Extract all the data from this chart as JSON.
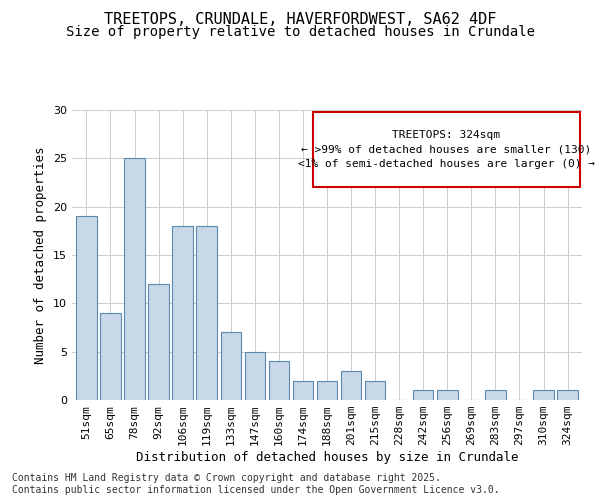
{
  "title_line1": "TREETOPS, CRUNDALE, HAVERFORDWEST, SA62 4DF",
  "title_line2": "Size of property relative to detached houses in Crundale",
  "xlabel": "Distribution of detached houses by size in Crundale",
  "ylabel": "Number of detached properties",
  "categories": [
    "51sqm",
    "65sqm",
    "78sqm",
    "92sqm",
    "106sqm",
    "119sqm",
    "133sqm",
    "147sqm",
    "160sqm",
    "174sqm",
    "188sqm",
    "201sqm",
    "215sqm",
    "228sqm",
    "242sqm",
    "256sqm",
    "269sqm",
    "283sqm",
    "297sqm",
    "310sqm",
    "324sqm"
  ],
  "values": [
    19,
    9,
    25,
    12,
    18,
    18,
    7,
    5,
    4,
    2,
    2,
    3,
    2,
    0,
    1,
    1,
    0,
    1,
    0,
    1,
    1
  ],
  "bar_color": "#c8d8e8",
  "bar_edge_color": "#5a8ab0",
  "highlight_index": 20,
  "annotation_text": "TREETOPS: 324sqm\n← >99% of detached houses are smaller (130)\n<1% of semi-detached houses are larger (0) →",
  "annotation_box_edge_color": "#cc0000",
  "ylim": [
    0,
    30
  ],
  "yticks": [
    0,
    5,
    10,
    15,
    20,
    25,
    30
  ],
  "footnote": "Contains HM Land Registry data © Crown copyright and database right 2025.\nContains public sector information licensed under the Open Government Licence v3.0.",
  "bg_color": "#ffffff",
  "grid_color": "#cccccc",
  "title_fontsize": 11,
  "subtitle_fontsize": 10,
  "axis_label_fontsize": 9,
  "tick_fontsize": 8,
  "annotation_fontsize": 8,
  "footnote_fontsize": 7
}
